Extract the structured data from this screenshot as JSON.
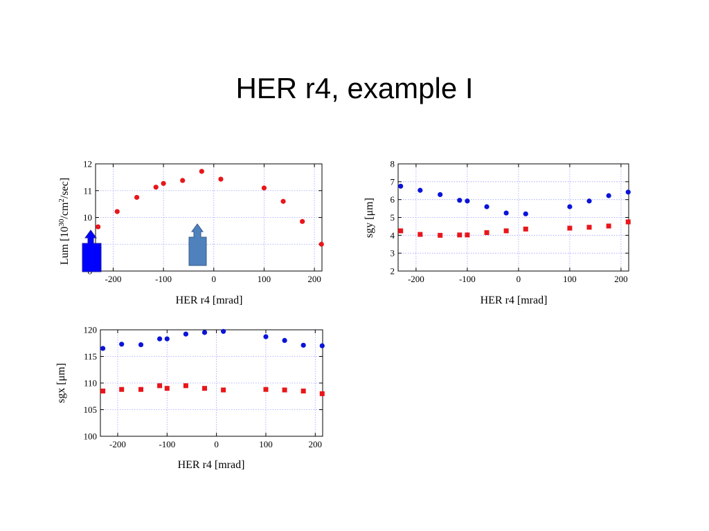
{
  "slide": {
    "title": "HER r4, example I"
  },
  "chart_data": [
    {
      "type": "scatter",
      "xlabel": "HER r4 [mrad]",
      "ylabel_parts": [
        "Lum [10",
        "30",
        "/cm",
        "2",
        "/sec]"
      ],
      "xlim": [
        -235,
        215
      ],
      "ylim": [
        8,
        12
      ],
      "xticks": [
        -200,
        -100,
        0,
        100,
        200
      ],
      "yticks": [
        8,
        9,
        10,
        11,
        12
      ],
      "grid": true,
      "series": [
        {
          "marker": "circle",
          "color": "#e8161b",
          "x": [
            -230,
            -192,
            -153,
            -115,
            -100,
            -62,
            -24,
            14,
            100,
            138,
            176,
            214
          ],
          "y": [
            9.65,
            10.22,
            10.75,
            11.13,
            11.27,
            11.38,
            11.72,
            11.43,
            11.1,
            10.6,
            9.85,
            9.0
          ]
        }
      ],
      "overlays": {
        "left_arrow_color": "#0000ff",
        "right_arrow_color": "#4f81bd"
      }
    },
    {
      "type": "scatter",
      "xlabel": "HER r4 [mrad]",
      "ylabel": "sgy [μm]",
      "xlim": [
        -235,
        215
      ],
      "ylim": [
        2,
        8
      ],
      "xticks": [
        -200,
        -100,
        0,
        100,
        200
      ],
      "yticks": [
        2,
        3,
        4,
        5,
        6,
        7,
        8
      ],
      "grid": true,
      "series": [
        {
          "marker": "circle",
          "color": "#0a14d8",
          "x": [
            -230,
            -192,
            -153,
            -115,
            -100,
            -62,
            -24,
            14,
            100,
            138,
            176,
            214
          ],
          "y": [
            6.75,
            6.52,
            6.28,
            5.96,
            5.92,
            5.6,
            5.25,
            5.2,
            5.6,
            5.92,
            6.22,
            6.42
          ]
        },
        {
          "marker": "square",
          "color": "#e8161b",
          "x": [
            -230,
            -192,
            -153,
            -115,
            -100,
            -62,
            -24,
            14,
            100,
            138,
            176,
            214
          ],
          "y": [
            4.25,
            4.05,
            4.0,
            4.02,
            4.02,
            4.15,
            4.25,
            4.35,
            4.4,
            4.45,
            4.52,
            4.75
          ]
        }
      ]
    },
    {
      "type": "scatter",
      "xlabel": "HER r4 [mrad]",
      "ylabel": "sgx [μm]",
      "xlim": [
        -235,
        215
      ],
      "ylim": [
        100,
        120
      ],
      "xticks": [
        -200,
        -100,
        0,
        100,
        200
      ],
      "yticks": [
        100,
        105,
        110,
        115,
        120
      ],
      "grid": true,
      "series": [
        {
          "marker": "circle",
          "color": "#0a14d8",
          "x": [
            -230,
            -192,
            -153,
            -115,
            -100,
            -62,
            -24,
            14,
            100,
            138,
            176,
            214
          ],
          "y": [
            116.5,
            117.3,
            117.2,
            118.3,
            118.3,
            119.2,
            119.5,
            119.7,
            118.7,
            118.0,
            117.1,
            117.0
          ]
        },
        {
          "marker": "square",
          "color": "#e8161b",
          "x": [
            -230,
            -192,
            -153,
            -115,
            -100,
            -62,
            -24,
            14,
            100,
            138,
            176,
            214
          ],
          "y": [
            108.5,
            108.8,
            108.8,
            109.5,
            109.0,
            109.5,
            109.0,
            108.7,
            108.8,
            108.7,
            108.5,
            108.0
          ]
        }
      ]
    }
  ]
}
